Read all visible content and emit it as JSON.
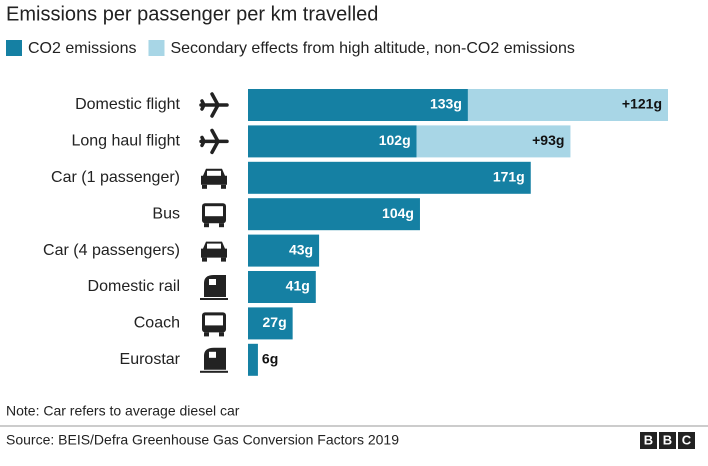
{
  "chart_data": {
    "type": "stacked-hbar",
    "title": "Emissions per passenger per km travelled",
    "categories": [
      "Domestic flight",
      "Long haul flight",
      "Car (1 passenger)",
      "Bus",
      "Car (4 passengers)",
      "Domestic rail",
      "Coach",
      "Eurostar"
    ],
    "series": [
      {
        "name": "CO2 emissions",
        "color": "#1580a3",
        "values": [
          133,
          102,
          171,
          104,
          43,
          41,
          27,
          6
        ],
        "value_labels": [
          "133g",
          "102g",
          "171g",
          "104g",
          "43g",
          "41g",
          "27g",
          "6g"
        ]
      },
      {
        "name": "Secondary effects from high altitude, non-CO2 emissions",
        "color": "#a8d6e6",
        "values": [
          121,
          93,
          null,
          null,
          null,
          null,
          null,
          null
        ],
        "value_labels": [
          "+121g",
          "+93g",
          null,
          null,
          null,
          null,
          null,
          null
        ]
      }
    ],
    "note": "Note: Car refers to average diesel car",
    "source": "Source: BEIS/Defra Greenhouse Gas Conversion Factors 2019",
    "logo": [
      "B",
      "B",
      "C"
    ]
  }
}
